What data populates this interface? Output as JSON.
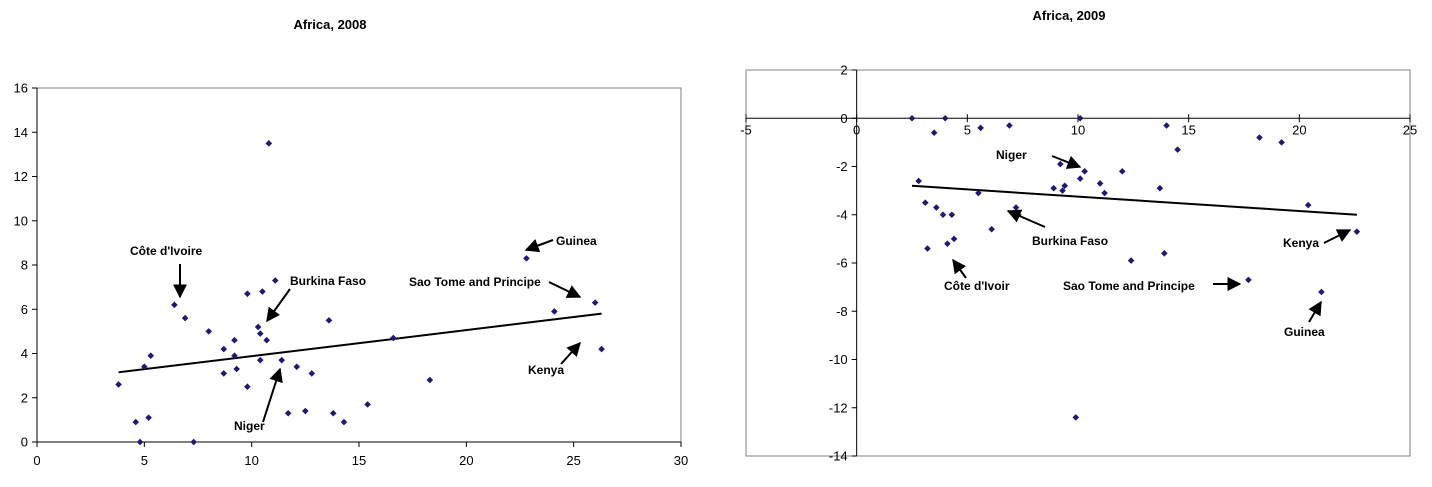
{
  "chart_data": [
    {
      "type": "scatter",
      "title": "Africa, 2008",
      "xlabel": "",
      "ylabel": "",
      "xlim": [
        0,
        30
      ],
      "ylim": [
        0,
        16
      ],
      "x_ticks": [
        0,
        5,
        10,
        15,
        20,
        25,
        30
      ],
      "y_ticks": [
        0,
        2,
        4,
        6,
        8,
        10,
        12,
        14,
        16
      ],
      "grid": false,
      "legend": "none",
      "marker_color": "#1f1a6e",
      "points": [
        [
          3.8,
          2.6
        ],
        [
          4.6,
          0.9
        ],
        [
          5.0,
          3.4
        ],
        [
          5.3,
          3.9
        ],
        [
          5.2,
          1.1
        ],
        [
          4.8,
          0.0
        ],
        [
          6.4,
          6.2
        ],
        [
          6.9,
          5.6
        ],
        [
          7.3,
          0.0
        ],
        [
          8.0,
          5.0
        ],
        [
          8.7,
          4.2
        ],
        [
          8.7,
          3.1
        ],
        [
          9.2,
          4.6
        ],
        [
          9.2,
          3.9
        ],
        [
          9.3,
          3.3
        ],
        [
          9.8,
          6.7
        ],
        [
          9.8,
          2.5
        ],
        [
          10.3,
          5.2
        ],
        [
          10.4,
          4.9
        ],
        [
          10.4,
          3.7
        ],
        [
          10.5,
          6.8
        ],
        [
          10.7,
          4.6
        ],
        [
          10.8,
          13.5
        ],
        [
          11.1,
          7.3
        ],
        [
          11.4,
          3.7
        ],
        [
          11.7,
          1.3
        ],
        [
          12.1,
          3.4
        ],
        [
          12.5,
          1.4
        ],
        [
          12.8,
          3.1
        ],
        [
          13.6,
          5.5
        ],
        [
          13.8,
          1.3
        ],
        [
          14.3,
          0.9
        ],
        [
          15.4,
          1.7
        ],
        [
          16.6,
          4.7
        ],
        [
          18.3,
          2.8
        ],
        [
          22.8,
          8.3
        ],
        [
          24.1,
          5.9
        ],
        [
          26.0,
          6.3
        ],
        [
          26.3,
          4.2
        ]
      ],
      "trendline": {
        "x": [
          3.8,
          26.3
        ],
        "y": [
          3.15,
          5.8
        ]
      },
      "annotations": [
        {
          "text": "Côte d'Ivoire",
          "target": [
            6.4,
            6.2
          ]
        },
        {
          "text": "Burkina Faso",
          "target": [
            10.4,
            4.9
          ]
        },
        {
          "text": "Niger",
          "target": [
            11.4,
            3.7
          ]
        },
        {
          "text": "Guinea",
          "target": [
            22.8,
            8.3
          ]
        },
        {
          "text": "Sao Tome and Principe",
          "target": [
            26.0,
            6.3
          ]
        },
        {
          "text": "Kenya",
          "target": [
            26.3,
            4.2
          ]
        }
      ]
    },
    {
      "type": "scatter",
      "title": "Africa, 2009",
      "xlabel": "",
      "ylabel": "",
      "xlim": [
        -5,
        25
      ],
      "ylim": [
        -14,
        2
      ],
      "x_ticks": [
        -5,
        0,
        5,
        10,
        15,
        20,
        25
      ],
      "y_ticks": [
        2,
        0,
        -2,
        -4,
        -6,
        -8,
        -10,
        -12,
        -14
      ],
      "grid": false,
      "legend": "none",
      "marker_color": "#1f1a6e",
      "points": [
        [
          2.5,
          0.0
        ],
        [
          2.8,
          -2.6
        ],
        [
          3.1,
          -3.5
        ],
        [
          3.2,
          -5.4
        ],
        [
          3.5,
          -0.6
        ],
        [
          3.6,
          -3.7
        ],
        [
          3.9,
          -4.0
        ],
        [
          4.0,
          0.0
        ],
        [
          4.1,
          -5.2
        ],
        [
          4.3,
          -4.0
        ],
        [
          4.4,
          -5.0
        ],
        [
          5.5,
          -3.1
        ],
        [
          5.6,
          -0.4
        ],
        [
          6.1,
          -4.6
        ],
        [
          6.9,
          -0.3
        ],
        [
          7.2,
          -3.7
        ],
        [
          7.3,
          -4.0
        ],
        [
          8.9,
          -2.9
        ],
        [
          9.2,
          -1.9
        ],
        [
          9.3,
          -3.0
        ],
        [
          9.4,
          -2.8
        ],
        [
          9.9,
          -12.4
        ],
        [
          10.1,
          0.0
        ],
        [
          10.1,
          -2.5
        ],
        [
          10.3,
          -2.2
        ],
        [
          11.0,
          -2.7
        ],
        [
          11.2,
          -3.1
        ],
        [
          12.0,
          -2.2
        ],
        [
          12.4,
          -5.9
        ],
        [
          13.7,
          -2.9
        ],
        [
          13.9,
          -5.6
        ],
        [
          14.0,
          -0.3
        ],
        [
          14.5,
          -1.3
        ],
        [
          17.7,
          -6.7
        ],
        [
          18.2,
          -0.8
        ],
        [
          19.2,
          -1.0
        ],
        [
          20.4,
          -3.6
        ],
        [
          21.0,
          -7.2
        ],
        [
          22.6,
          -4.7
        ]
      ],
      "trendline": {
        "x": [
          2.5,
          22.6
        ],
        "y": [
          -2.8,
          -4.0
        ]
      },
      "annotations": [
        {
          "text": "Niger",
          "target": [
            9.2,
            -1.9
          ]
        },
        {
          "text": "Burkina Faso",
          "target": [
            7.2,
            -3.7
          ]
        },
        {
          "text": "Côte d'Ivoir",
          "target": [
            4.4,
            -5.0
          ]
        },
        {
          "text": "Sao Tome and Principe",
          "target": [
            17.7,
            -6.7
          ]
        },
        {
          "text": "Kenya",
          "target": [
            22.6,
            -4.7
          ]
        },
        {
          "text": "Guinea",
          "target": [
            21.0,
            -7.2
          ]
        }
      ]
    }
  ]
}
